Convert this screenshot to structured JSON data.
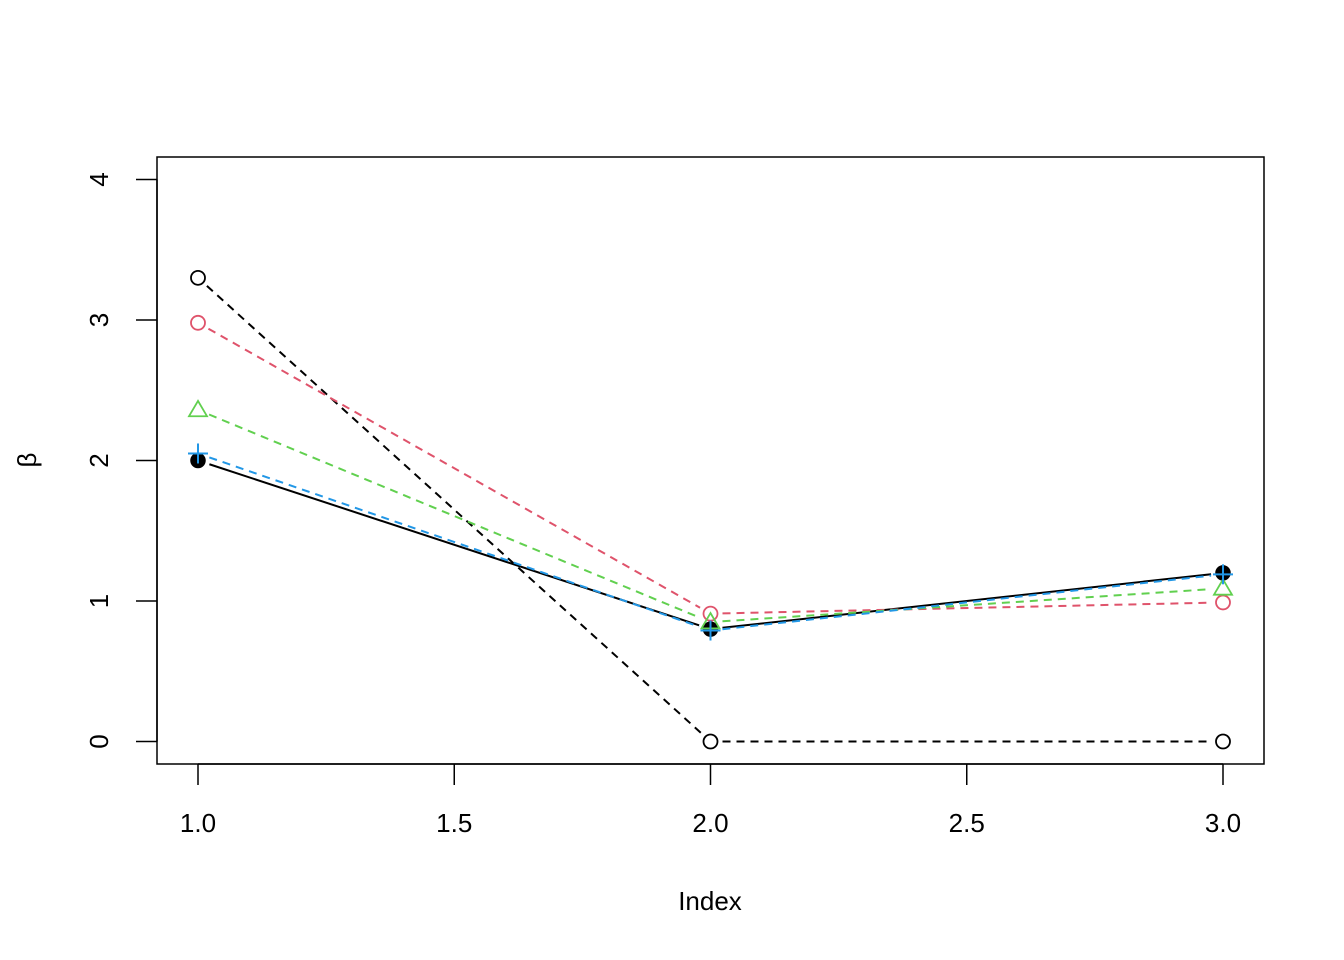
{
  "chart_data": {
    "type": "line",
    "xlabel": "Index",
    "ylabel": "β",
    "xlim": [
      0.92,
      3.08
    ],
    "ylim": [
      -0.16,
      4.16
    ],
    "x_ticks": [
      "1.0",
      "1.5",
      "2.0",
      "2.5",
      "3.0"
    ],
    "x_tick_values": [
      1.0,
      1.5,
      2.0,
      2.5,
      3.0
    ],
    "y_ticks": [
      "0",
      "1",
      "2",
      "3",
      "4"
    ],
    "y_tick_values": [
      0,
      1,
      2,
      3,
      4
    ],
    "grid": false,
    "x": [
      1,
      2,
      3
    ],
    "series": [
      {
        "values": [
          2.0,
          0.8,
          1.2
        ],
        "color": "#000000",
        "line": "solid",
        "marker": "filled-circle"
      },
      {
        "values": [
          3.3,
          0.0,
          0.0
        ],
        "color": "#000000",
        "line": "dashed",
        "marker": "open-circle"
      },
      {
        "values": [
          2.98,
          0.91,
          0.99
        ],
        "color": "#DF536B",
        "line": "dashed",
        "marker": "open-circle"
      },
      {
        "values": [
          2.36,
          0.85,
          1.09
        ],
        "color": "#61D04F",
        "line": "dashed",
        "marker": "open-triangle"
      },
      {
        "values": [
          2.05,
          0.79,
          1.19
        ],
        "color": "#2297E6",
        "line": "dashed",
        "marker": "plus"
      }
    ]
  }
}
